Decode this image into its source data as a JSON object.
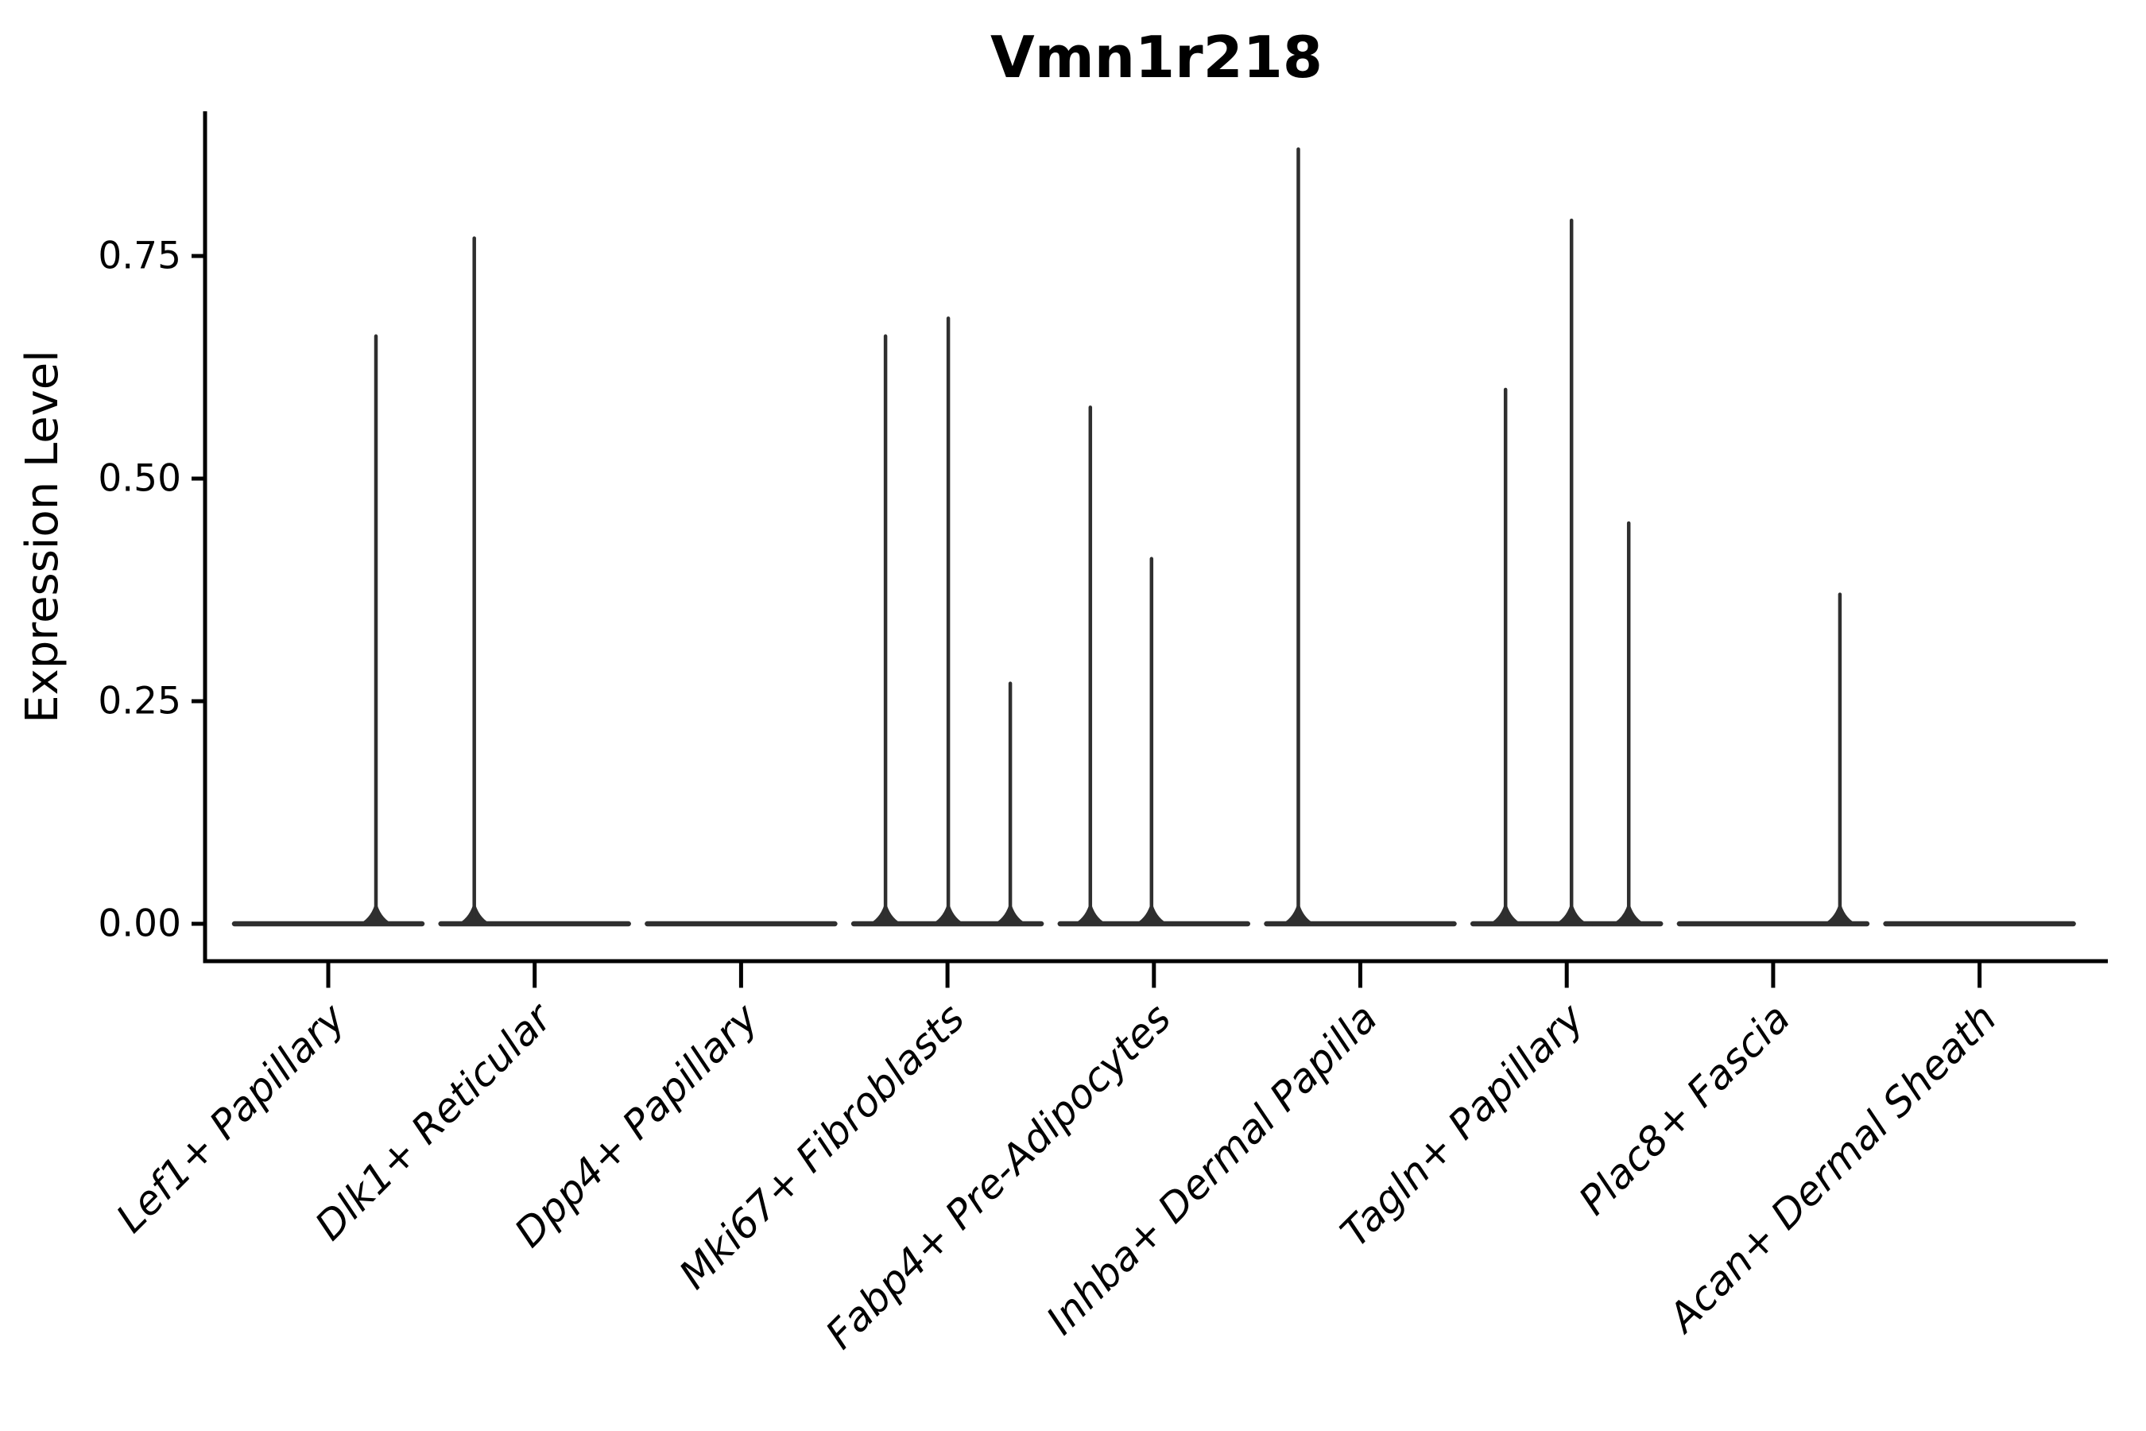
{
  "figure": {
    "title": "Vmn1r218",
    "y_axis_label": "Expression Level"
  },
  "chart_data": {
    "type": "violin",
    "title": "Vmn1r218",
    "xlabel": "",
    "ylabel": "Expression Level",
    "ylim": [
      0,
      0.91
    ],
    "y_ticks": [
      0,
      0.25,
      0.5,
      0.75
    ],
    "y_tick_labels": [
      "0.00",
      "0.25",
      "0.50",
      "0.75"
    ],
    "grid": false,
    "legend": "none",
    "style": {
      "violin_color": "#2f2f2f",
      "axis_color": "#000000",
      "background": "#ffffff",
      "x_label_rotation_deg": 45,
      "x_labels_italic": true
    },
    "description": "Seurat-style violin plot of Vmn1r218 expression; each cluster shows a flat density bulk at 0 with thin vertical density spikes reaching the listed maximum expression values.",
    "categories": [
      {
        "label": "Lef1+ Papillary",
        "zero_bulk": true,
        "spikes": [
          {
            "dx": 60,
            "value": 0.66
          }
        ]
      },
      {
        "label": "Dlk1+ Reticular",
        "zero_bulk": true,
        "spikes": [
          {
            "dx": -76,
            "value": 0.77
          }
        ]
      },
      {
        "label": "Dpp4+ Papillary",
        "zero_bulk": true,
        "spikes": []
      },
      {
        "label": "Mki67+ Fibroblasts",
        "zero_bulk": true,
        "spikes": [
          {
            "dx": -78,
            "value": 0.66
          },
          {
            "dx": 1,
            "value": 0.68
          },
          {
            "dx": 79,
            "value": 0.27
          }
        ]
      },
      {
        "label": "Fabp4+ Pre-Adipocytes",
        "zero_bulk": true,
        "spikes": [
          {
            "dx": -80,
            "value": 0.58
          },
          {
            "dx": -3,
            "value": 0.41
          }
        ]
      },
      {
        "label": "Inhba+ Dermal Papilla",
        "zero_bulk": true,
        "spikes": [
          {
            "dx": -78,
            "value": 0.87
          }
        ]
      },
      {
        "label": "Tagln+ Papillary",
        "zero_bulk": true,
        "spikes": [
          {
            "dx": -77,
            "value": 0.6
          },
          {
            "dx": 6,
            "value": 0.79
          },
          {
            "dx": 78,
            "value": 0.45
          }
        ]
      },
      {
        "label": "Plac8+ Fascia",
        "zero_bulk": true,
        "spikes": [
          {
            "dx": 84,
            "value": 0.37
          }
        ]
      },
      {
        "label": "Acan+ Dermal Sheath",
        "zero_bulk": true,
        "spikes": []
      }
    ]
  }
}
